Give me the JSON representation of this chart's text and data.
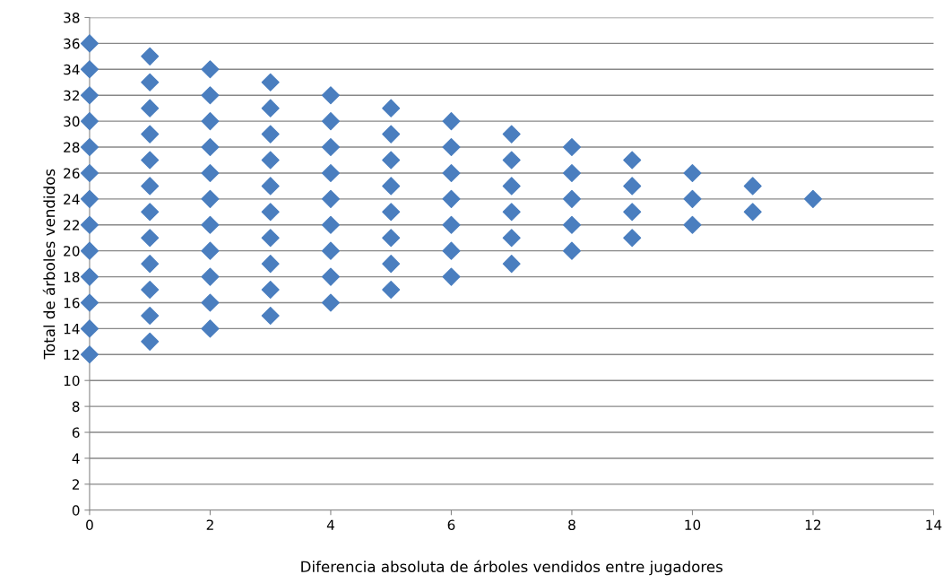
{
  "chart_data": {
    "type": "scatter",
    "xlabel": "Diferencia absoluta de árboles vendidos entre jugadores",
    "ylabel": "Total de árboles vendidos",
    "x": [
      0,
      0,
      0,
      0,
      0,
      0,
      0,
      0,
      0,
      0,
      0,
      0,
      0,
      1,
      1,
      1,
      1,
      1,
      1,
      1,
      1,
      1,
      1,
      1,
      1,
      2,
      2,
      2,
      2,
      2,
      2,
      2,
      2,
      2,
      2,
      2,
      3,
      3,
      3,
      3,
      3,
      3,
      3,
      3,
      3,
      3,
      4,
      4,
      4,
      4,
      4,
      4,
      4,
      4,
      4,
      5,
      5,
      5,
      5,
      5,
      5,
      5,
      5,
      6,
      6,
      6,
      6,
      6,
      6,
      6,
      7,
      7,
      7,
      7,
      7,
      7,
      8,
      8,
      8,
      8,
      8,
      9,
      9,
      9,
      9,
      10,
      10,
      10,
      11,
      11,
      12
    ],
    "values": [
      12,
      14,
      16,
      18,
      20,
      22,
      24,
      26,
      28,
      30,
      32,
      34,
      36,
      13,
      15,
      17,
      19,
      21,
      23,
      25,
      27,
      29,
      31,
      33,
      35,
      14,
      16,
      18,
      20,
      22,
      24,
      26,
      28,
      30,
      32,
      34,
      15,
      17,
      19,
      21,
      23,
      25,
      27,
      29,
      31,
      33,
      16,
      18,
      20,
      22,
      24,
      26,
      28,
      30,
      32,
      17,
      19,
      21,
      23,
      25,
      27,
      29,
      31,
      18,
      20,
      22,
      24,
      26,
      28,
      30,
      19,
      21,
      23,
      25,
      27,
      29,
      20,
      22,
      24,
      26,
      28,
      21,
      23,
      25,
      27,
      22,
      24,
      26,
      23,
      25,
      24
    ],
    "color": "#4a7ebf",
    "marker": "diamond",
    "grid": "y",
    "xlim": [
      0,
      14
    ],
    "xticks": [
      0,
      2,
      4,
      6,
      8,
      10,
      12,
      14
    ],
    "ylim": [
      0,
      38
    ],
    "yticks": [
      0,
      2,
      4,
      6,
      8,
      10,
      12,
      14,
      16,
      18,
      20,
      22,
      24,
      26,
      28,
      30,
      32,
      34,
      36,
      38
    ]
  }
}
